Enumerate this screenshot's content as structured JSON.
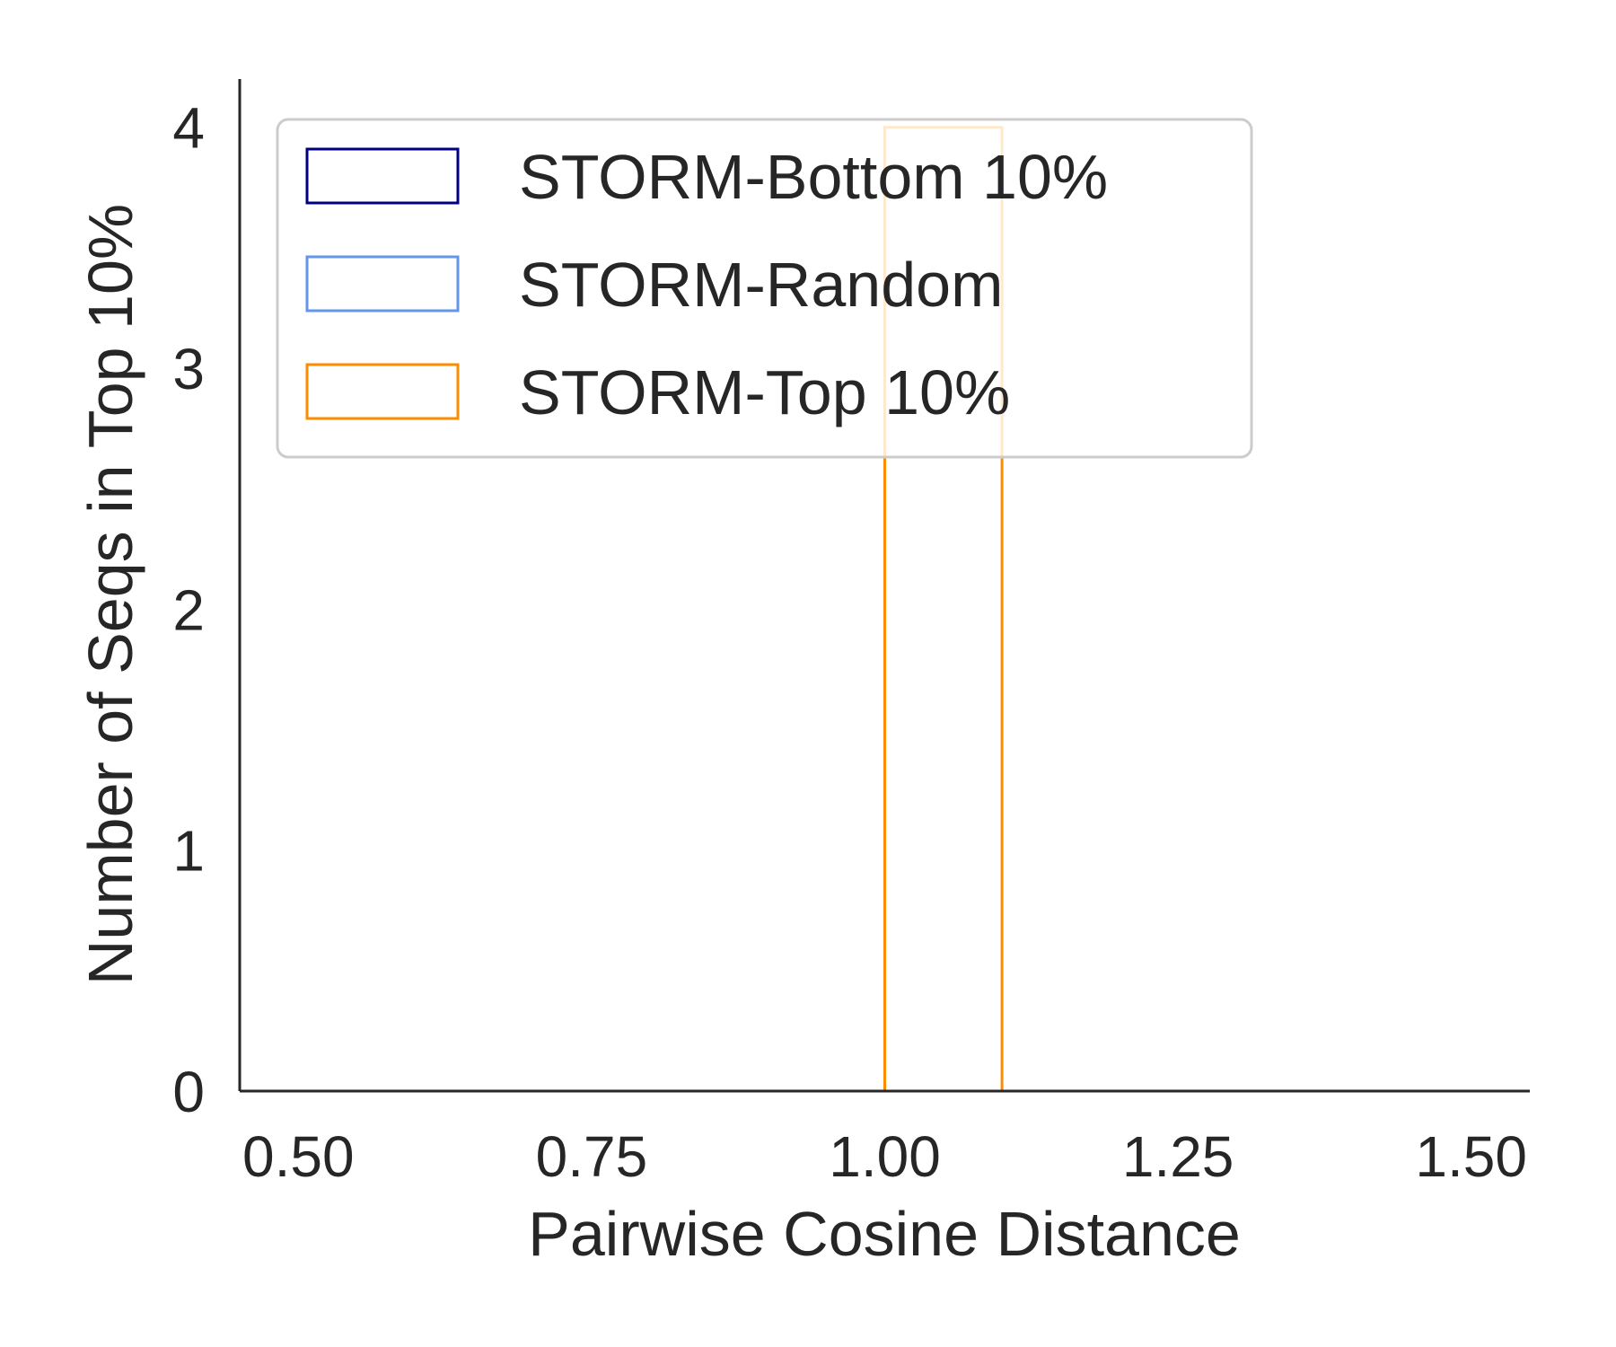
{
  "chart_data": {
    "type": "histogram",
    "xlabel": "Pairwise Cosine Distance",
    "ylabel": "Number of Seqs in Top 10%",
    "xlim": [
      0.45,
      1.55
    ],
    "ylim": [
      0,
      4.2
    ],
    "x_ticks": [
      "0.50",
      "0.75",
      "1.00",
      "1.25",
      "1.50"
    ],
    "y_ticks": [
      "0",
      "1",
      "2",
      "3",
      "4"
    ],
    "legend_position": "upper left",
    "series": [
      {
        "name": "STORM-Bottom 10%",
        "color": "#000080",
        "style": "step",
        "bins": [
          {
            "x0": 0.5,
            "x1": 1.5,
            "count": 0
          }
        ]
      },
      {
        "name": "STORM-Random",
        "color": "#6495ed",
        "style": "step",
        "bins": [
          {
            "x0": 0.5,
            "x1": 1.5,
            "count": 0
          }
        ]
      },
      {
        "name": "STORM-Top 10%",
        "color": "#ff8c00",
        "style": "step",
        "bins": [
          {
            "x0": 0.5,
            "x1": 1.0,
            "count": 0
          },
          {
            "x0": 1.0,
            "x1": 1.1,
            "count": 4
          },
          {
            "x0": 1.1,
            "x1": 1.5,
            "count": 0
          }
        ]
      }
    ]
  }
}
